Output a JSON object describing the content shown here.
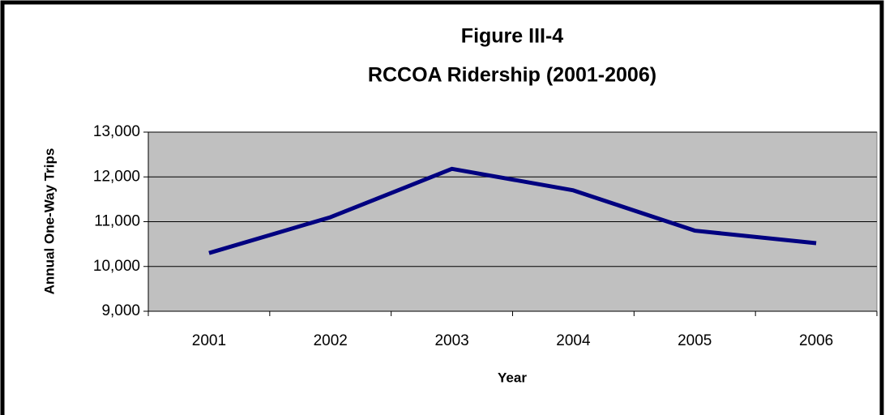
{
  "chart_data": {
    "type": "line",
    "title": [
      "Figure III-4",
      "RCCOA Ridership (2001-2006)"
    ],
    "x_label": "Year",
    "y_label": "Annual One-Way Trips",
    "categories": [
      "2001",
      "2002",
      "2003",
      "2004",
      "2005",
      "2006"
    ],
    "series": [
      {
        "name": "Ridership",
        "color": "#000080",
        "values": [
          10300,
          11100,
          12180,
          11700,
          10800,
          10520
        ]
      }
    ],
    "ylim": [
      9000,
      13000
    ],
    "yticks": [
      {
        "value": 9000,
        "label": "9,000"
      },
      {
        "value": 10000,
        "label": "10,000"
      },
      {
        "value": 11000,
        "label": "11,000"
      },
      {
        "value": 12000,
        "label": "12,000"
      },
      {
        "value": 13000,
        "label": "13,000"
      }
    ],
    "grid": true,
    "plot_background": "#c0c0c0"
  }
}
